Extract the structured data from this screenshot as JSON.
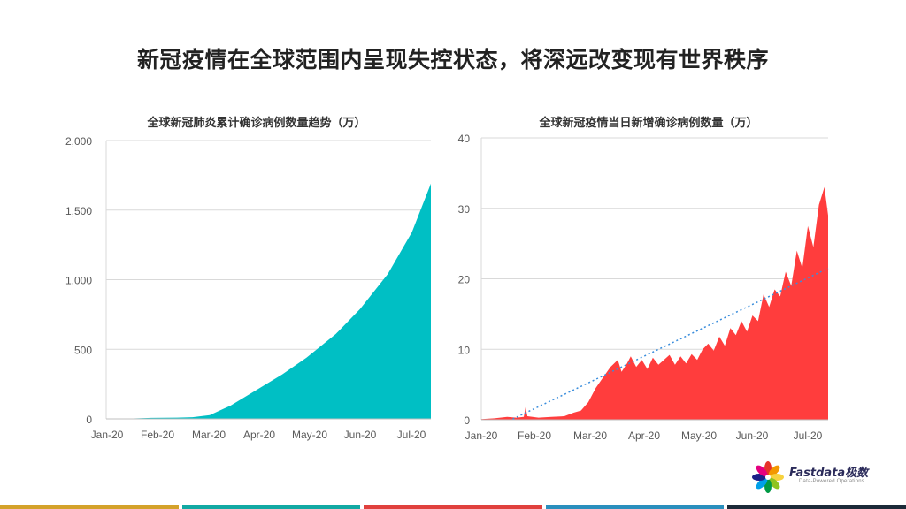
{
  "headline": "新冠疫情在全球范围内呈现失控状态，将深远改变现有世界秩序",
  "chart_data": [
    {
      "type": "area",
      "title": "全球新冠肺炎累计确诊病例数量趋势（万）",
      "x_ticks": [
        "Jan-20",
        "Feb-20",
        "Mar-20",
        "Apr-20",
        "May-20",
        "Jun-20",
        "Jul-20"
      ],
      "y_ticks": [
        "0",
        "500",
        "1,000",
        "1,500",
        "2,000"
      ],
      "ylim": [
        0,
        2000
      ],
      "x_range": [
        "2020-01-20",
        "2020-07-26"
      ],
      "x": [
        "2020-01-20",
        "2020-02-01",
        "2020-02-15",
        "2020-03-01",
        "2020-03-10",
        "2020-03-20",
        "2020-04-01",
        "2020-04-15",
        "2020-05-01",
        "2020-05-15",
        "2020-06-01",
        "2020-06-15",
        "2020-07-01",
        "2020-07-15",
        "2020-07-26"
      ],
      "values": [
        0,
        1,
        7,
        9,
        12,
        27,
        95,
        200,
        320,
        440,
        610,
        790,
        1040,
        1340,
        1690
      ],
      "color": "#00bfc4",
      "grid": true
    },
    {
      "type": "area",
      "title": "全球新冠疫情当日新增确诊病例数量（万）",
      "x_ticks": [
        "Jan-20",
        "Feb-20",
        "Mar-20",
        "Apr-20",
        "May-20",
        "Jun-20",
        "Jul-20"
      ],
      "y_ticks": [
        "0",
        "10",
        "20",
        "30",
        "40"
      ],
      "ylim": [
        0,
        40
      ],
      "x_range": [
        "2020-01-20",
        "2020-07-26"
      ],
      "x": [
        "2020-01-20",
        "2020-01-27",
        "2020-02-03",
        "2020-02-08",
        "2020-02-12",
        "2020-02-13",
        "2020-02-14",
        "2020-02-20",
        "2020-02-27",
        "2020-03-05",
        "2020-03-10",
        "2020-03-14",
        "2020-03-18",
        "2020-03-22",
        "2020-03-26",
        "2020-03-30",
        "2020-04-03",
        "2020-04-05",
        "2020-04-08",
        "2020-04-10",
        "2020-04-13",
        "2020-04-16",
        "2020-04-19",
        "2020-04-22",
        "2020-04-25",
        "2020-04-28",
        "2020-05-01",
        "2020-05-04",
        "2020-05-07",
        "2020-05-10",
        "2020-05-13",
        "2020-05-16",
        "2020-05-19",
        "2020-05-22",
        "2020-05-25",
        "2020-05-28",
        "2020-05-31",
        "2020-06-03",
        "2020-06-06",
        "2020-06-09",
        "2020-06-12",
        "2020-06-15",
        "2020-06-18",
        "2020-06-21",
        "2020-06-24",
        "2020-06-27",
        "2020-06-30",
        "2020-07-03",
        "2020-07-06",
        "2020-07-09",
        "2020-07-12",
        "2020-07-15",
        "2020-07-18",
        "2020-07-21",
        "2020-07-24",
        "2020-07-26"
      ],
      "values": [
        0.1,
        0.2,
        0.4,
        0.3,
        0.4,
        1.8,
        0.5,
        0.3,
        0.4,
        0.5,
        1.0,
        1.3,
        2.5,
        4.5,
        6.0,
        7.5,
        8.5,
        6.8,
        8.0,
        9.0,
        7.5,
        8.5,
        7.2,
        8.8,
        7.8,
        8.5,
        9.2,
        7.8,
        9.0,
        8.0,
        9.3,
        8.5,
        10.0,
        10.8,
        9.8,
        11.8,
        10.5,
        13.0,
        12.0,
        14.0,
        12.5,
        14.8,
        14.0,
        17.8,
        16.0,
        18.5,
        17.5,
        21.0,
        19.0,
        24.0,
        21.5,
        27.5,
        24.5,
        30.5,
        33.0,
        29.0
      ],
      "trendline": {
        "x": [
          "2020-02-06",
          "2020-07-26"
        ],
        "y": [
          0.1,
          21.5
        ]
      },
      "color": "#ff3d3d",
      "trend_color": "#3a8ddc",
      "grid": true
    }
  ],
  "logo": {
    "name": "Fastdata极数",
    "tagline": "Data-Powered Operations"
  },
  "bottom_bar_colors": [
    "#d4a22a",
    "#12a9a3",
    "#e0403d",
    "#2a8fbd",
    "#1c2a38"
  ]
}
